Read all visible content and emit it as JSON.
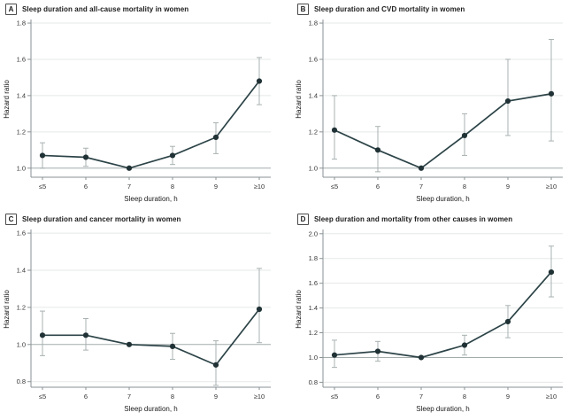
{
  "colors": {
    "line": "#2c4347",
    "marker": "#203235",
    "error_bar": "#a8b1b1",
    "gridline": "#e5e7e7",
    "reference_line": "#a4abab",
    "axis": "#8a9294",
    "tick_text": "#333333",
    "label_text": "#1a1a1a"
  },
  "chart_data": [
    {
      "type": "line",
      "panel_label": "A",
      "title": "Sleep duration and all-cause mortality in women",
      "xlabel": "Sleep duration, h",
      "ylabel": "Hazard ratio",
      "categories": [
        "≤5",
        "6",
        "7",
        "8",
        "9",
        "≥10"
      ],
      "yticks": [
        1.0,
        1.2,
        1.4,
        1.6,
        1.8
      ],
      "ylim": [
        0.95,
        1.81
      ],
      "reference_y": 1.0,
      "grid": true,
      "legend": "none",
      "series": [
        {
          "name": "Hazard ratio",
          "values": [
            1.07,
            1.06,
            1.0,
            1.07,
            1.17,
            1.48
          ],
          "ci_low": [
            1.0,
            1.01,
            1.0,
            1.02,
            1.08,
            1.35
          ],
          "ci_high": [
            1.14,
            1.11,
            1.0,
            1.12,
            1.25,
            1.61
          ]
        }
      ]
    },
    {
      "type": "line",
      "panel_label": "B",
      "title": "Sleep duration and CVD mortality in women",
      "xlabel": "Sleep duration, h",
      "ylabel": "Hazard ratio",
      "categories": [
        "≤5",
        "6",
        "7",
        "8",
        "9",
        "≥10"
      ],
      "yticks": [
        1.0,
        1.2,
        1.4,
        1.6,
        1.8
      ],
      "ylim": [
        0.95,
        1.81
      ],
      "reference_y": 1.0,
      "grid": true,
      "legend": "none",
      "series": [
        {
          "name": "Hazard ratio",
          "values": [
            1.21,
            1.1,
            1.0,
            1.18,
            1.37,
            1.41
          ],
          "ci_low": [
            1.05,
            0.98,
            1.0,
            1.07,
            1.18,
            1.15
          ],
          "ci_high": [
            1.4,
            1.23,
            1.0,
            1.3,
            1.6,
            1.71
          ]
        }
      ]
    },
    {
      "type": "line",
      "panel_label": "C",
      "title": "Sleep duration and cancer mortality in women",
      "xlabel": "Sleep duration, h",
      "ylabel": "Hazard ratio",
      "categories": [
        "≤5",
        "6",
        "7",
        "8",
        "9",
        "≥10"
      ],
      "yticks": [
        0.8,
        1.0,
        1.2,
        1.4,
        1.6
      ],
      "ylim": [
        0.77,
        1.61
      ],
      "reference_y": 1.0,
      "grid": true,
      "legend": "none",
      "series": [
        {
          "name": "Hazard ratio",
          "values": [
            1.05,
            1.05,
            1.0,
            0.99,
            0.89,
            1.19
          ],
          "ci_low": [
            0.94,
            0.97,
            1.0,
            0.92,
            0.78,
            1.01
          ],
          "ci_high": [
            1.18,
            1.14,
            1.0,
            1.06,
            1.02,
            1.41
          ]
        }
      ]
    },
    {
      "type": "line",
      "panel_label": "D",
      "title": "Sleep duration and mortality from other causes in women",
      "xlabel": "Sleep duration, h",
      "ylabel": "Hazard ratio",
      "categories": [
        "≤5",
        "6",
        "7",
        "8",
        "9",
        "≥10"
      ],
      "yticks": [
        0.8,
        1.0,
        1.2,
        1.4,
        1.6,
        1.8,
        2.0
      ],
      "ylim": [
        0.76,
        2.02
      ],
      "reference_y": 1.0,
      "grid": true,
      "legend": "none",
      "series": [
        {
          "name": "Hazard ratio",
          "values": [
            1.02,
            1.05,
            1.0,
            1.1,
            1.29,
            1.69
          ],
          "ci_low": [
            0.92,
            0.97,
            1.0,
            1.02,
            1.16,
            1.49
          ],
          "ci_high": [
            1.14,
            1.13,
            1.0,
            1.18,
            1.42,
            1.9
          ]
        }
      ]
    }
  ]
}
